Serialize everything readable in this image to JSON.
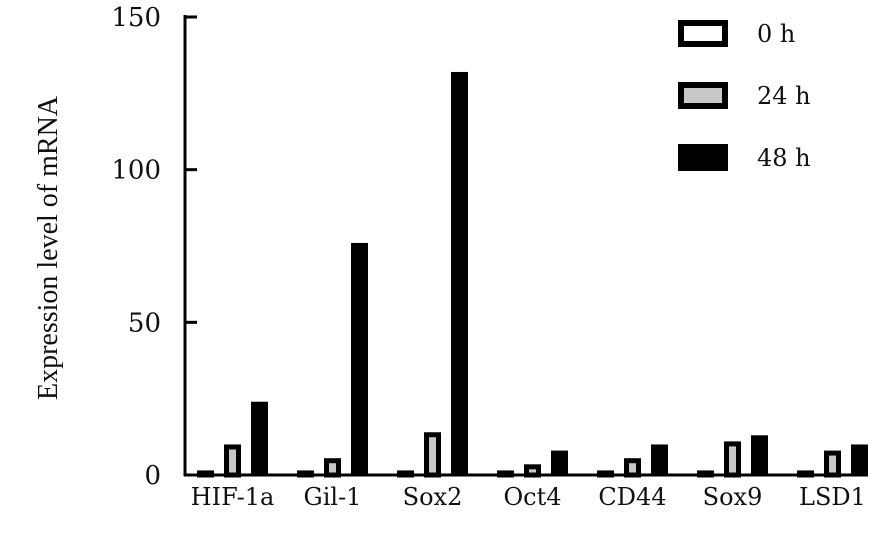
{
  "chart_data": {
    "type": "bar",
    "ylabel": "Expression level of mRNA",
    "ylim": [
      0,
      150
    ],
    "yticks": [
      "0",
      "50",
      "100",
      "150"
    ],
    "categories": [
      "HIF-1a",
      "Gil-1",
      "Sox2",
      "Oct4",
      "CD44",
      "Sox9",
      "LSD1"
    ],
    "series": [
      {
        "name": "0 h",
        "values": [
          1.5,
          1.5,
          1.5,
          1.5,
          1.5,
          1.5,
          1.5
        ]
      },
      {
        "name": "24 h",
        "values": [
          10,
          5.5,
          14,
          3.5,
          5.5,
          11,
          8
        ]
      },
      {
        "name": "48 h",
        "values": [
          24,
          76,
          132,
          8,
          10,
          13,
          10
        ]
      }
    ],
    "legend_position": "top-right",
    "grid": false,
    "colors": {
      "0 h": {
        "fill": "#ffffff",
        "stroke": "#000000"
      },
      "24 h": {
        "fill": "#c8c8c8",
        "stroke": "#000000"
      },
      "48 h": {
        "fill": "#000000",
        "stroke": "#000000"
      }
    }
  }
}
